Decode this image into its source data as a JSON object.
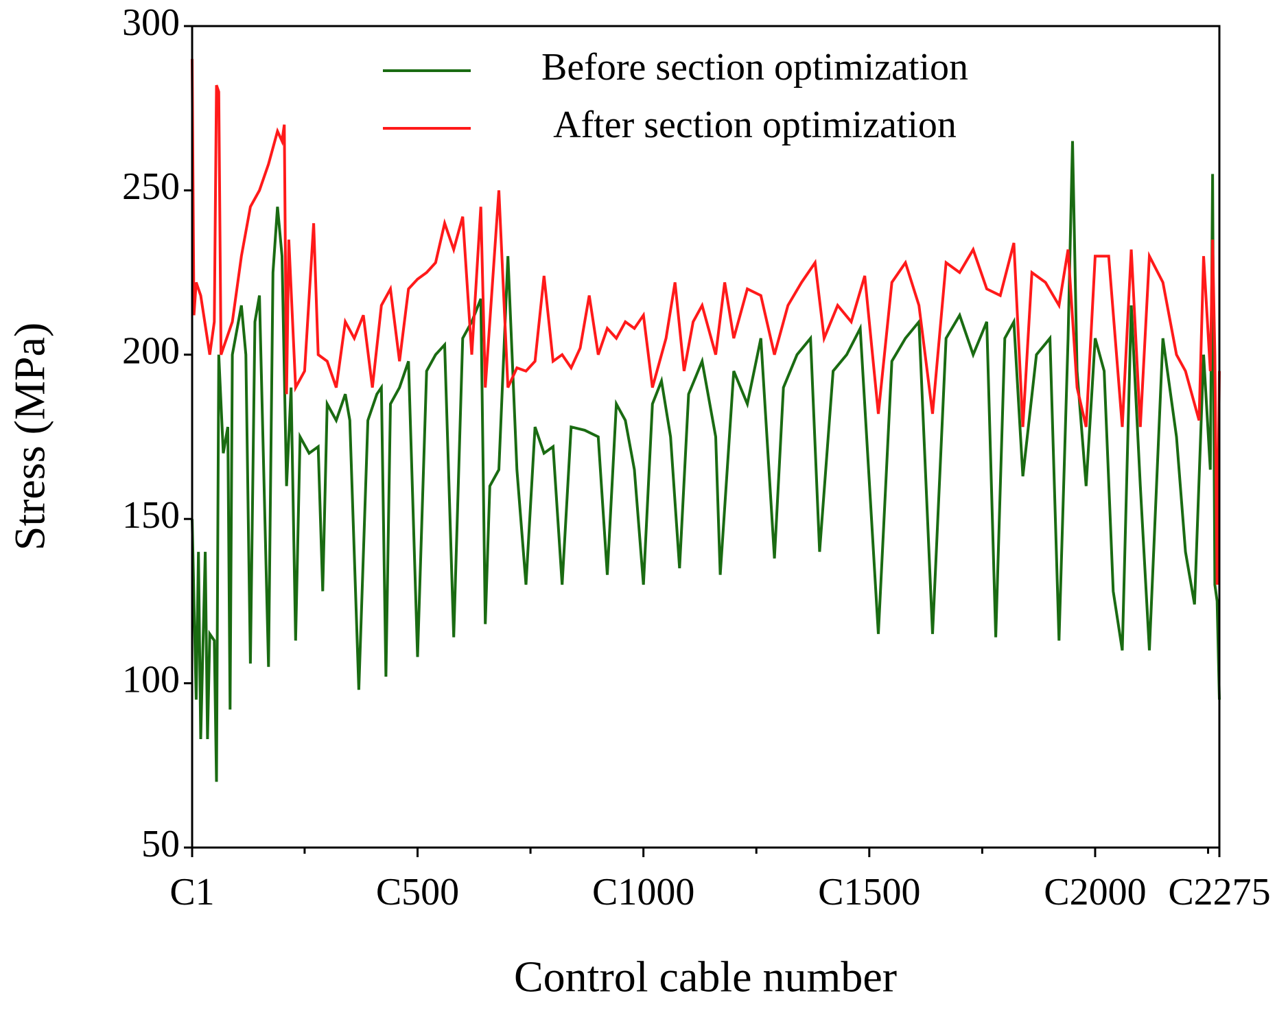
{
  "chart_data": {
    "type": "line",
    "xlabel": "Control cable number",
    "ylabel": "Stress (MPa)",
    "xlim": [
      1,
      2275
    ],
    "ylim": [
      50,
      300
    ],
    "yticks": [
      50,
      100,
      150,
      200,
      250,
      300
    ],
    "xticks": [
      {
        "value": 1,
        "label": "C1"
      },
      {
        "value": 500,
        "label": "C500"
      },
      {
        "value": 1000,
        "label": "C1000"
      },
      {
        "value": 1500,
        "label": "C1500"
      },
      {
        "value": 2000,
        "label": "C2000"
      },
      {
        "value": 2275,
        "label": "C2275"
      }
    ],
    "xminor_ticks": [
      250,
      750,
      1250,
      1750,
      2250
    ],
    "legend": "upper center",
    "series": [
      {
        "name": "Before section optimization",
        "color": "#1a6b12",
        "x": [
          1,
          10,
          15,
          20,
          30,
          35,
          40,
          50,
          55,
          60,
          70,
          80,
          85,
          90,
          110,
          120,
          130,
          140,
          150,
          170,
          180,
          190,
          200,
          210,
          220,
          230,
          240,
          260,
          280,
          290,
          300,
          320,
          340,
          350,
          370,
          390,
          410,
          420,
          430,
          440,
          460,
          480,
          500,
          520,
          540,
          560,
          580,
          600,
          620,
          640,
          650,
          660,
          680,
          700,
          720,
          740,
          760,
          780,
          800,
          820,
          840,
          870,
          900,
          920,
          940,
          960,
          980,
          1000,
          1020,
          1040,
          1060,
          1080,
          1100,
          1130,
          1160,
          1170,
          1200,
          1230,
          1260,
          1290,
          1310,
          1340,
          1370,
          1390,
          1420,
          1450,
          1480,
          1520,
          1550,
          1580,
          1610,
          1640,
          1670,
          1700,
          1730,
          1760,
          1780,
          1800,
          1820,
          1840,
          1870,
          1900,
          1920,
          1940,
          1950,
          1960,
          1980,
          2000,
          2020,
          2040,
          2060,
          2080,
          2100,
          2120,
          2150,
          2180,
          2200,
          2220,
          2240,
          2255,
          2260,
          2265,
          2270,
          2275
        ],
        "values": [
          150,
          95,
          140,
          83,
          140,
          83,
          115,
          113,
          70,
          200,
          170,
          178,
          92,
          200,
          215,
          200,
          106,
          210,
          218,
          105,
          225,
          245,
          230,
          160,
          190,
          113,
          175,
          170,
          172,
          128,
          185,
          180,
          188,
          180,
          98,
          180,
          188,
          190,
          102,
          185,
          190,
          198,
          108,
          195,
          200,
          203,
          114,
          205,
          210,
          217,
          118,
          160,
          165,
          230,
          165,
          130,
          178,
          170,
          172,
          130,
          178,
          177,
          175,
          133,
          185,
          180,
          165,
          130,
          185,
          192,
          175,
          135,
          188,
          198,
          175,
          133,
          195,
          185,
          205,
          138,
          190,
          200,
          205,
          140,
          195,
          200,
          208,
          115,
          198,
          205,
          210,
          115,
          205,
          212,
          200,
          210,
          114,
          205,
          210,
          163,
          200,
          205,
          113,
          205,
          265,
          195,
          160,
          205,
          195,
          128,
          110,
          215,
          160,
          110,
          205,
          175,
          140,
          124,
          200,
          165,
          255,
          130,
          125,
          95
        ]
      },
      {
        "name": "After section optimization",
        "color": "#ff1a1a",
        "x": [
          1,
          5,
          10,
          20,
          40,
          50,
          55,
          60,
          65,
          90,
          110,
          130,
          150,
          170,
          190,
          200,
          205,
          210,
          215,
          230,
          250,
          270,
          280,
          300,
          320,
          340,
          360,
          380,
          400,
          420,
          440,
          460,
          480,
          500,
          520,
          540,
          560,
          580,
          600,
          620,
          640,
          650,
          680,
          700,
          720,
          740,
          760,
          780,
          800,
          820,
          840,
          860,
          880,
          900,
          920,
          940,
          960,
          980,
          1000,
          1020,
          1050,
          1070,
          1090,
          1110,
          1130,
          1160,
          1180,
          1200,
          1230,
          1260,
          1290,
          1320,
          1350,
          1380,
          1400,
          1430,
          1460,
          1490,
          1520,
          1550,
          1580,
          1610,
          1640,
          1670,
          1700,
          1730,
          1760,
          1790,
          1820,
          1840,
          1860,
          1890,
          1920,
          1940,
          1960,
          1980,
          2000,
          2030,
          2060,
          2080,
          2100,
          2120,
          2150,
          2180,
          2200,
          2230,
          2240,
          2255,
          2260,
          2265,
          2270,
          2275
        ],
        "values": [
          290,
          212,
          222,
          218,
          200,
          210,
          282,
          280,
          200,
          210,
          230,
          245,
          250,
          258,
          268,
          265,
          270,
          188,
          235,
          190,
          195,
          240,
          200,
          198,
          190,
          210,
          205,
          212,
          190,
          215,
          220,
          198,
          220,
          223,
          225,
          228,
          240,
          232,
          242,
          200,
          245,
          190,
          250,
          190,
          196,
          195,
          198,
          224,
          198,
          200,
          196,
          202,
          218,
          200,
          208,
          205,
          210,
          208,
          212,
          190,
          205,
          222,
          195,
          210,
          215,
          200,
          222,
          205,
          220,
          218,
          200,
          215,
          222,
          228,
          205,
          215,
          210,
          224,
          182,
          222,
          228,
          215,
          182,
          228,
          225,
          232,
          220,
          218,
          234,
          178,
          225,
          222,
          215,
          232,
          190,
          178,
          230,
          230,
          178,
          232,
          178,
          230,
          222,
          200,
          195,
          180,
          230,
          195,
          235,
          200,
          130,
          195
        ]
      }
    ]
  }
}
